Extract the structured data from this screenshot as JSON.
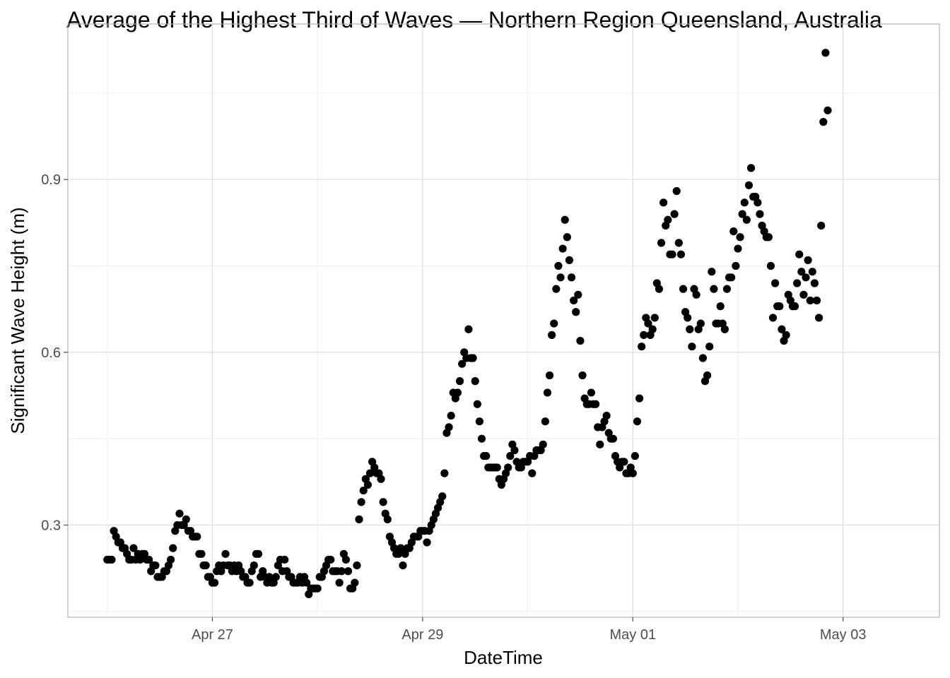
{
  "chart_data": {
    "type": "scatter",
    "title": "Average of the Highest Third of Waves — Northern Region Queensland, Australia",
    "xlabel": "DateTime",
    "ylabel": "Significant Wave Height (m)",
    "x_range": [
      "2026-04-25T15:00",
      "2026-05-03T22:00"
    ],
    "ylim": [
      0.14,
      1.17
    ],
    "x_ticks": [
      {
        "label": "Apr 27",
        "date": "2026-04-27T00:00"
      },
      {
        "label": "Apr 29",
        "date": "2026-04-29T00:00"
      },
      {
        "label": "May 01",
        "date": "2026-05-01T00:00"
      },
      {
        "label": "May 03",
        "date": "2026-05-03T00:00"
      }
    ],
    "y_ticks": [
      {
        "label": "0.3",
        "value": 0.3
      },
      {
        "label": "0.6",
        "value": 0.6
      },
      {
        "label": "0.9",
        "value": 0.9
      }
    ],
    "grid": true,
    "legend": "none",
    "point_color": "#000000",
    "series": [
      {
        "x_start": "2026-04-26T00:00",
        "interval_minutes": 30,
        "values": [
          0.24,
          0.24,
          0.24,
          0.29,
          0.28,
          0.27,
          0.27,
          0.26,
          0.26,
          0.25,
          0.24,
          0.24,
          0.26,
          0.24,
          0.25,
          0.24,
          0.25,
          0.25,
          0.24,
          0.24,
          0.22,
          0.23,
          0.23,
          0.21,
          0.21,
          0.21,
          0.22,
          0.22,
          0.23,
          0.24,
          0.26,
          0.29,
          0.3,
          0.32,
          0.3,
          0.3,
          0.31,
          0.29,
          0.29,
          0.28,
          0.28,
          0.28,
          0.25,
          0.25,
          0.23,
          0.23,
          0.21,
          0.21,
          0.2,
          0.2,
          0.22,
          0.23,
          0.22,
          0.23,
          0.25,
          0.23,
          0.23,
          0.22,
          0.23,
          0.22,
          0.23,
          0.22,
          0.21,
          0.21,
          0.2,
          0.2,
          0.22,
          0.23,
          0.25,
          0.25,
          0.21,
          0.22,
          0.21,
          0.2,
          0.21,
          0.2,
          0.2,
          0.21,
          0.23,
          0.24,
          0.22,
          0.24,
          0.22,
          0.21,
          0.21,
          0.2,
          0.2,
          0.2,
          0.21,
          0.2,
          0.21,
          0.2,
          0.18,
          0.19,
          0.19,
          0.19,
          0.19,
          0.21,
          0.21,
          0.22,
          0.23,
          0.24,
          0.24,
          0.22,
          0.22,
          0.22,
          0.2,
          0.22,
          0.25,
          0.24,
          0.22,
          0.19,
          0.19,
          0.2,
          0.23,
          0.31,
          0.34,
          0.36,
          0.38,
          0.37,
          0.39,
          0.41,
          0.4,
          0.39,
          0.39,
          0.38,
          0.34,
          0.32,
          0.31,
          0.28,
          0.27,
          0.26,
          0.25,
          0.25,
          0.26,
          0.23,
          0.25,
          0.26,
          0.26,
          0.27,
          0.28,
          0.28,
          0.28,
          0.29,
          0.29,
          0.29,
          0.27,
          0.29,
          0.3,
          0.31,
          0.32,
          0.33,
          0.34,
          0.35,
          0.39,
          0.46,
          0.47,
          0.49,
          0.53,
          0.52,
          0.53,
          0.55,
          0.58,
          0.6,
          0.59,
          0.64,
          0.59,
          0.59,
          0.55,
          0.51,
          0.48,
          0.45,
          0.42,
          0.42,
          0.4,
          0.4,
          0.4,
          0.4,
          0.4,
          0.38,
          0.37,
          0.38,
          0.39,
          0.4,
          0.42,
          0.44,
          0.43,
          0.41,
          0.4,
          0.4,
          0.41,
          0.41,
          0.41,
          0.42,
          0.39,
          0.42,
          0.43,
          0.43,
          0.43,
          0.44,
          0.48,
          0.53,
          0.56,
          0.63,
          0.65,
          0.71,
          0.75,
          0.73,
          0.78,
          0.83,
          0.8,
          0.76,
          0.73,
          0.69,
          0.67,
          0.7,
          0.62,
          0.56,
          0.52,
          0.51,
          0.51,
          0.53,
          0.51,
          0.51,
          0.47,
          0.44,
          0.47,
          0.48,
          0.49,
          0.46,
          0.45,
          0.45,
          0.42,
          0.41,
          0.4,
          0.41,
          0.41,
          0.39,
          0.39,
          0.4,
          0.39,
          0.42,
          0.48,
          0.52,
          0.61,
          0.63,
          0.66,
          0.65,
          0.63,
          0.64,
          0.66,
          0.72,
          0.71,
          0.79,
          0.86,
          0.82,
          0.83,
          0.77,
          0.77,
          0.84,
          0.88,
          0.79,
          0.77,
          0.71,
          0.67,
          0.66,
          0.64,
          0.61,
          0.71,
          0.7,
          0.64,
          0.65,
          0.59,
          0.55,
          0.56,
          0.61,
          0.74,
          0.71,
          0.65,
          0.65,
          0.68,
          0.65,
          0.64,
          0.71,
          0.73,
          0.73,
          0.81,
          0.75,
          0.78,
          0.8,
          0.84,
          0.86,
          0.83,
          0.89,
          0.92,
          0.87,
          0.87,
          0.86,
          0.84,
          0.82,
          0.81,
          0.8,
          0.8,
          0.75,
          0.66,
          0.72,
          0.68,
          0.68,
          0.64,
          0.62,
          0.63,
          0.7,
          0.69,
          0.68,
          0.68,
          0.72,
          0.77,
          0.74,
          0.7,
          0.73,
          0.76,
          0.69,
          0.74,
          0.72,
          0.69,
          0.66,
          0.82,
          1.0,
          1.12,
          1.02
        ]
      }
    ]
  }
}
